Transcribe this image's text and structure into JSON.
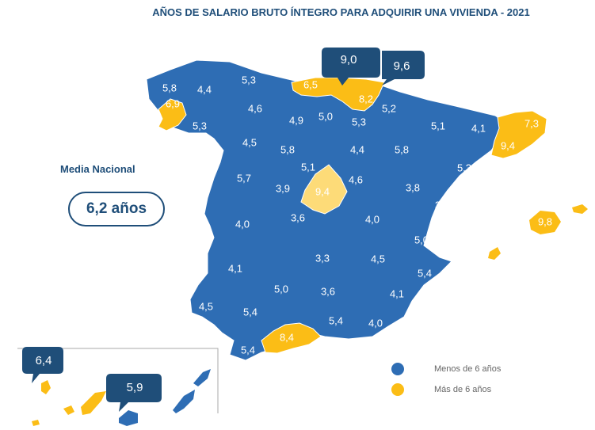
{
  "title": "AÑOS DE SALARIO BRUTO ÍNTEGRO PARA ADQUIRIR UNA VIVIENDA - 2021",
  "media": {
    "label": "Media Nacional",
    "value": "6,2 años"
  },
  "legend": [
    {
      "label": "Menos de 6 años",
      "color": "#2e6db4"
    },
    {
      "label": "Más de 6 años",
      "color": "#fbbd16"
    }
  ],
  "colors": {
    "below": "#2e6db4",
    "above": "#fbbd16",
    "madrid": "#fddb78",
    "callout": "#1f4e79"
  },
  "provinces": [
    {
      "name": "A Coruña",
      "value": "5,8",
      "group": "below"
    },
    {
      "name": "Lugo",
      "value": "4,4",
      "group": "below"
    },
    {
      "name": "Asturias",
      "value": "5,3",
      "group": "below"
    },
    {
      "name": "Cantabria",
      "value": "6,5",
      "group": "above"
    },
    {
      "name": "Bizkaia",
      "value": "9,0",
      "group": "above"
    },
    {
      "name": "Gipuzkoa",
      "value": "9,6",
      "group": "above"
    },
    {
      "name": "Pontevedra",
      "value": "6,9",
      "group": "above"
    },
    {
      "name": "Ourense",
      "value": "5,3",
      "group": "below"
    },
    {
      "name": "León",
      "value": "4,6",
      "group": "below"
    },
    {
      "name": "Palencia",
      "value": "4,9",
      "group": "below"
    },
    {
      "name": "Burgos",
      "value": "5,0",
      "group": "below"
    },
    {
      "name": "Álava",
      "value": "8,2",
      "group": "above"
    },
    {
      "name": "La Rioja",
      "value": "5,3",
      "group": "below"
    },
    {
      "name": "Navarra",
      "value": "5,2",
      "group": "below"
    },
    {
      "name": "Huesca",
      "value": "5,1",
      "group": "below"
    },
    {
      "name": "Lleida",
      "value": "4,1",
      "group": "below"
    },
    {
      "name": "Girona",
      "value": "7,3",
      "group": "above"
    },
    {
      "name": "Barcelona",
      "value": "9,4",
      "group": "above"
    },
    {
      "name": "Zamora",
      "value": "4,5",
      "group": "below"
    },
    {
      "name": "Valladolid",
      "value": "5,8",
      "group": "below"
    },
    {
      "name": "Soria",
      "value": "4,4",
      "group": "below"
    },
    {
      "name": "Zaragoza",
      "value": "5,8",
      "group": "below"
    },
    {
      "name": "Tarragona",
      "value": "5,3",
      "group": "below"
    },
    {
      "name": "Salamanca",
      "value": "5,7",
      "group": "below"
    },
    {
      "name": "Segovia",
      "value": "5,1",
      "group": "below"
    },
    {
      "name": "Ávila",
      "value": "3,9",
      "group": "below"
    },
    {
      "name": "Madrid",
      "value": "9,4",
      "group": "madrid"
    },
    {
      "name": "Guadalajara",
      "value": "4,6",
      "group": "below"
    },
    {
      "name": "Teruel",
      "value": "3,8",
      "group": "below"
    },
    {
      "name": "Castellón",
      "value": "3,8",
      "group": "below"
    },
    {
      "name": "Illes Balears",
      "value": "9,8",
      "group": "above"
    },
    {
      "name": "Cáceres",
      "value": "4,0",
      "group": "below"
    },
    {
      "name": "Toledo",
      "value": "3,6",
      "group": "below"
    },
    {
      "name": "Cuenca",
      "value": "4,0",
      "group": "below"
    },
    {
      "name": "Valencia",
      "value": "5,0",
      "group": "below"
    },
    {
      "name": "Badajoz",
      "value": "4,1",
      "group": "below"
    },
    {
      "name": "Ciudad Real",
      "value": "3,3",
      "group": "below"
    },
    {
      "name": "Albacete",
      "value": "4,5",
      "group": "below"
    },
    {
      "name": "Alicante",
      "value": "5,4",
      "group": "below"
    },
    {
      "name": "Huelva",
      "value": "4,5",
      "group": "below"
    },
    {
      "name": "Sevilla",
      "value": "5,4",
      "group": "below"
    },
    {
      "name": "Córdoba",
      "value": "5,0",
      "group": "below"
    },
    {
      "name": "Jaén",
      "value": "3,6",
      "group": "below"
    },
    {
      "name": "Murcia",
      "value": "4,1",
      "group": "below"
    },
    {
      "name": "Granada",
      "value": "5,4",
      "group": "below"
    },
    {
      "name": "Almería",
      "value": "4,0",
      "group": "below"
    },
    {
      "name": "Cádiz",
      "value": "5,4",
      "group": "below"
    },
    {
      "name": "Málaga",
      "value": "8,4",
      "group": "above"
    },
    {
      "name": "Santa Cruz de Tenerife",
      "value": "6,4",
      "group": "above"
    },
    {
      "name": "Las Palmas",
      "value": "5,9",
      "group": "below"
    }
  ]
}
